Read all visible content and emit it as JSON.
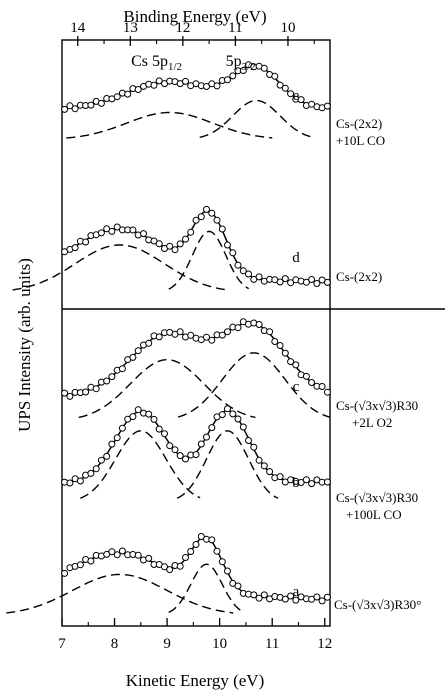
{
  "chart_data": {
    "type": "line",
    "title": "",
    "xlabel": "Kinetic Energy (eV)",
    "x2label": "Binding Energy (eV)",
    "ylabel": "UPS Intensity (arb. units)",
    "xlim": [
      7,
      12.1
    ],
    "xticks": [
      "7",
      "8",
      "9",
      "10",
      "11",
      "12"
    ],
    "x2ticks": [
      "14",
      "13",
      "12",
      "11",
      "10"
    ],
    "x2tick_positions_ke": [
      7.3,
      8.3,
      9.3,
      10.3,
      11.3
    ],
    "peak_labels": [
      {
        "text": "Cs 5p",
        "sub": "1/2",
        "x_be": 12.5
      },
      {
        "text": "5p",
        "sub": "3/2",
        "x_be": 10.9
      }
    ],
    "grid": false,
    "legend": "none",
    "panels": [
      "top",
      "bottom"
    ],
    "series": [
      {
        "letter": "e",
        "condition_lines": [
          "Cs-(2x2)",
          "+10L CO"
        ],
        "panel": "top",
        "baseline": 0.15,
        "p1": {
          "x": 9.05,
          "amp": 0.18,
          "w": 0.82
        },
        "p2": {
          "x": 10.7,
          "amp": 0.26,
          "w": 0.45
        }
      },
      {
        "letter": "d",
        "condition_lines": [
          "Cs-(2x2)"
        ],
        "panel": "top",
        "baseline": 0.03,
        "p1": {
          "x": 8.1,
          "amp": 0.28,
          "w": 0.85
        },
        "p2": {
          "x": 9.8,
          "amp": 0.36,
          "w": 0.32
        }
      },
      {
        "letter": "c",
        "condition_lines": [
          "Cs-(√3x√3)R30",
          "+2L O2"
        ],
        "panel": "bottom",
        "baseline": 0.08,
        "p1": {
          "x": 9.0,
          "amp": 0.36,
          "w": 0.7
        },
        "p2": {
          "x": 10.65,
          "amp": 0.4,
          "w": 0.6
        }
      },
      {
        "letter": "b",
        "condition_lines": [
          "Cs-(√3x√3)R30",
          "+100L CO"
        ],
        "panel": "bottom",
        "baseline": 0.04,
        "p1": {
          "x": 8.5,
          "amp": 0.42,
          "w": 0.48
        },
        "p2": {
          "x": 10.15,
          "amp": 0.42,
          "w": 0.4
        }
      },
      {
        "letter": "a",
        "condition_lines": [
          "Cs-(√3x√3)R30°"
        ],
        "panel": "bottom",
        "baseline": 0.07,
        "p1": {
          "x": 8.1,
          "amp": 0.24,
          "w": 0.9
        },
        "p2": {
          "x": 9.75,
          "amp": 0.3,
          "w": 0.3
        }
      }
    ]
  }
}
